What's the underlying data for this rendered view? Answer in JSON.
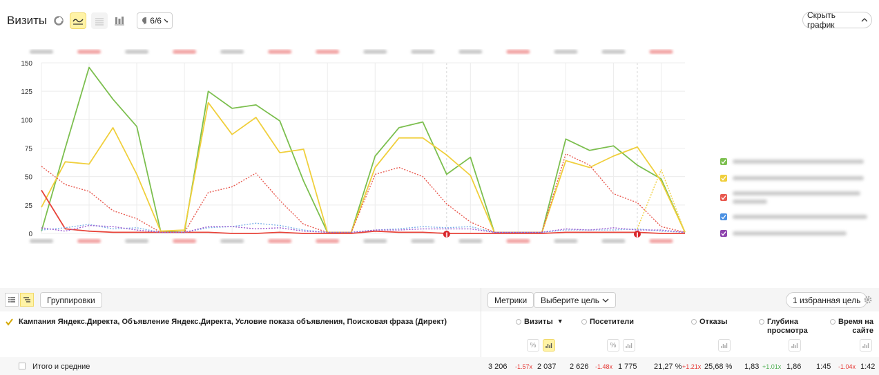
{
  "header": {
    "title": "Визиты",
    "annotations_count": "6/6",
    "hide_chart_label": "Скрыть график"
  },
  "chart_data": {
    "type": "line",
    "ylim": [
      0,
      150
    ],
    "yticks": [
      0,
      25,
      50,
      75,
      100,
      125,
      150
    ],
    "x_count": 28,
    "series": [
      {
        "color": "#7cbf4f",
        "style": "solid",
        "values": [
          2,
          75,
          146,
          118,
          94,
          2,
          1,
          125,
          110,
          113,
          99,
          46,
          1,
          1,
          68,
          93,
          98,
          52,
          67,
          1,
          1,
          1,
          83,
          73,
          77,
          60,
          48,
          1
        ]
      },
      {
        "color": "#f0cf3c",
        "style": "solid",
        "values": [
          23,
          63,
          61,
          93,
          52,
          2,
          3,
          115,
          87,
          102,
          71,
          74,
          1,
          1,
          58,
          84,
          84,
          69,
          51,
          1,
          1,
          1,
          64,
          58,
          68,
          76,
          46,
          1
        ]
      },
      {
        "color": "#e8594f",
        "style": "dotted",
        "values": [
          59,
          43,
          37,
          20,
          13,
          1,
          1,
          36,
          41,
          53,
          29,
          8,
          1,
          1,
          52,
          58,
          50,
          26,
          10,
          1,
          1,
          1,
          70,
          60,
          35,
          27,
          6,
          1
        ]
      },
      {
        "color": "#e8443a",
        "style": "solid",
        "values": [
          38,
          4,
          2,
          1,
          1,
          1,
          1,
          1,
          0,
          0,
          1,
          0,
          0,
          0,
          2,
          1,
          1,
          0,
          0,
          0,
          0,
          0,
          1,
          1,
          1,
          1,
          0,
          0
        ]
      },
      {
        "color": "#7fb3e8",
        "style": "dotted",
        "values": [
          3,
          5,
          8,
          4,
          5,
          1,
          1,
          5,
          6,
          9,
          7,
          3,
          1,
          1,
          3,
          4,
          6,
          5,
          6,
          1,
          1,
          1,
          3,
          3,
          3,
          4,
          2,
          1
        ]
      },
      {
        "color": "#9a5ad0",
        "style": "dotted",
        "values": [
          5,
          2,
          7,
          6,
          3,
          1,
          1,
          6,
          6,
          4,
          5,
          2,
          1,
          1,
          3,
          3,
          4,
          4,
          4,
          1,
          1,
          1,
          4,
          3,
          5,
          3,
          3,
          1
        ]
      },
      {
        "color": "#f0cf3c",
        "style": "dotted",
        "values": [
          null,
          null,
          null,
          null,
          null,
          null,
          null,
          null,
          null,
          null,
          null,
          null,
          null,
          null,
          null,
          null,
          null,
          null,
          null,
          null,
          null,
          null,
          null,
          null,
          null,
          4,
          56,
          1
        ]
      }
    ]
  },
  "legend": {
    "items": [
      {
        "color": "#7cbf4f"
      },
      {
        "color": "#f0cf3c"
      },
      {
        "color": "#e8594f"
      },
      {
        "color": "#4a90e2"
      },
      {
        "color": "#8e44ad"
      }
    ]
  },
  "report": {
    "groupings_label": "Группировки",
    "metrics_label": "Метрики",
    "goal_select_label": "Выберите цель",
    "favorite_goal_label": "1 избранная цель",
    "dimensions_label": "Кампания Яндекс.Директа, Объявление Яндекс.Директа, Условие показа объявления, Поисковая фраза (Директ)",
    "columns": {
      "visits": "Визиты",
      "visitors": "Посетители",
      "bounces": "Отказы",
      "depth_1": "Глубина",
      "depth_2": "просмотра",
      "time_1": "Время на",
      "time_2": "сайте"
    },
    "totals": {
      "label": "Итого и средние",
      "visits_a": "3 206",
      "visits_ratio": "-1.57x",
      "visits_b": "2 037",
      "visitors_a": "2 626",
      "visitors_ratio": "-1.48x",
      "visitors_b": "1 775",
      "bounce_a": "21,27 %",
      "bounce_ratio": "+1.21x",
      "bounce_b": "25,68 %",
      "depth_a": "1,83",
      "depth_ratio": "+1.01x",
      "depth_b": "1,86",
      "time_a": "1:45",
      "time_ratio": "-1.04x",
      "time_b": "1:42"
    },
    "percent_symbol": "%"
  }
}
